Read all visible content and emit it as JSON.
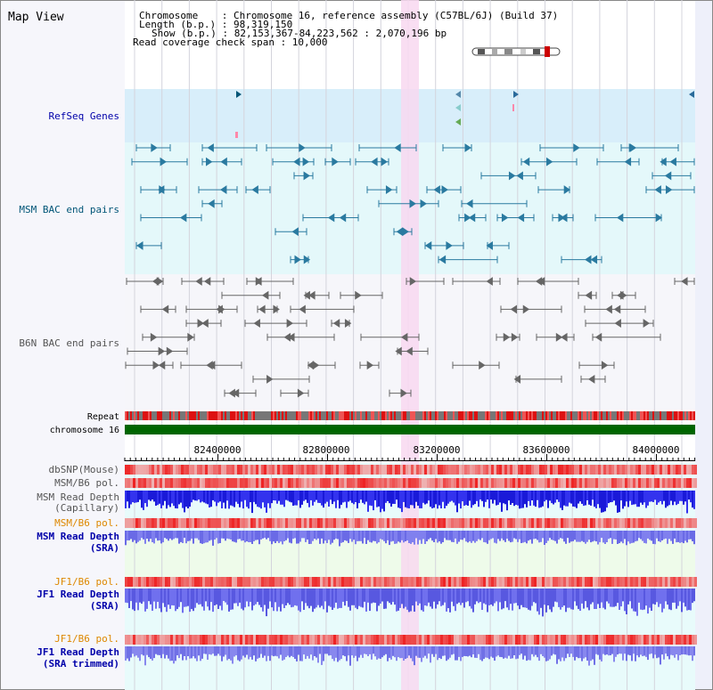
{
  "panel": {
    "title": "Map View"
  },
  "header": {
    "lines": [
      "Chromosome    : Chromosome 16, reference assembly (C57BL/6J) (Build 37)",
      "Length (b.p.) : 98,319,150",
      "Show (b.p.) : 82,153,367-84,223,562 : 2,070,196 bp",
      "Read coverage check span : 10,000"
    ]
  },
  "tracks": {
    "refseq": "RefSeq Genes",
    "msm_bac": "MSM BAC end pairs",
    "b6n_bac": "B6N BAC end pairs",
    "repeat": "Repeat",
    "chromosome": "chromosome 16",
    "dbsnp": "dbSNP(Mouse)",
    "msm_b6_pol_1": "MSM/B6 pol.",
    "msm_depth_cap_1": "MSM Read Depth",
    "msm_depth_cap_2": "(Capillary)",
    "msm_b6_pol_2": "MSM/B6 pol.",
    "msm_depth_sra_1": "MSM Read Depth",
    "msm_depth_sra_2": "(SRA)",
    "jf1_b6_pol_1": "JF1/B6 pol.",
    "jf1_depth_sra_1": "JF1 Read Depth",
    "jf1_depth_sra_2": "(SRA)",
    "jf1_b6_pol_2": "JF1/B6 pol.",
    "jf1_depth_trim_1": "JF1 Read Depth",
    "jf1_depth_trim_2": "(SRA trimmed)"
  },
  "axis": {
    "ticks": [
      "82400000",
      "82800000",
      "83200000",
      "83600000",
      "84000000"
    ]
  },
  "colors": {
    "gene": "#005577",
    "msm": "#2a7aa0",
    "b6n": "#666666",
    "refseq_bg": "#d8eefa",
    "msm_bg": "#e4f8fa",
    "b6n_bg": "#f4f4fa",
    "highlight": "#f8d8f0",
    "chromosome": "#006600",
    "depth_blue": "#2222dd",
    "depth_light": "#7777ee",
    "label_blue": "#0000aa",
    "label_orange": "#dd8800",
    "label_teal": "#005577"
  }
}
